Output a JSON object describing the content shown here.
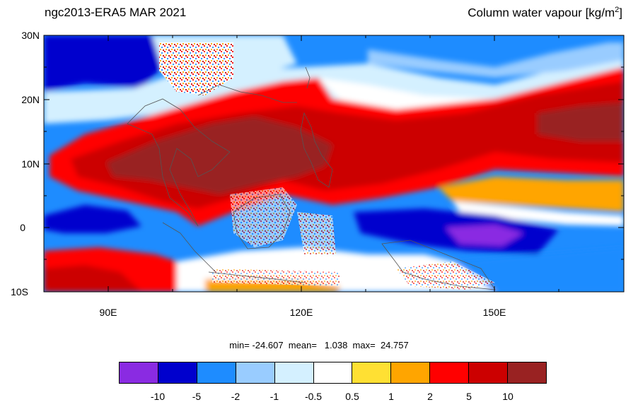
{
  "header": {
    "left_title": "ngc2013-ERA5  MAR 2021",
    "right_title_base": "Column water vapour [kg/m",
    "right_title_sup": "2",
    "right_title_end": "]"
  },
  "map": {
    "lat_range": [
      -10,
      30
    ],
    "lon_range": [
      80,
      170
    ],
    "lat_labels": [
      "30N",
      "20N",
      "10N",
      "0",
      "10S"
    ],
    "lon_labels": [
      "90E",
      "120E",
      "150E"
    ],
    "fields": {
      "min_label": "min=",
      "min": "-24.607",
      "mean_label": "mean=",
      "mean": "1.038",
      "max_label": "max=",
      "max": "24.757"
    }
  },
  "colorbar": {
    "colors": [
      "#8a2be2",
      "#0000cd",
      "#1e8cff",
      "#99ccff",
      "#d4f0ff",
      "#ffffff",
      "#ffe033",
      "#ffa500",
      "#ff0000",
      "#cc0000",
      "#992222"
    ],
    "labels": [
      "-10",
      "-5",
      "-2",
      "-1",
      "-0.5",
      "0.5",
      "1",
      "2",
      "5",
      "10"
    ]
  }
}
